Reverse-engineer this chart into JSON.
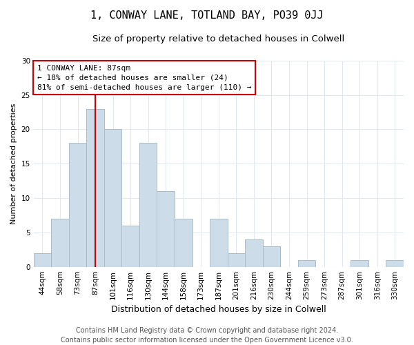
{
  "title": "1, CONWAY LANE, TOTLAND BAY, PO39 0JJ",
  "subtitle": "Size of property relative to detached houses in Colwell",
  "xlabel": "Distribution of detached houses by size in Colwell",
  "ylabel": "Number of detached properties",
  "footer_line1": "Contains HM Land Registry data © Crown copyright and database right 2024.",
  "footer_line2": "Contains public sector information licensed under the Open Government Licence v3.0.",
  "bar_labels": [
    "44sqm",
    "58sqm",
    "73sqm",
    "87sqm",
    "101sqm",
    "116sqm",
    "130sqm",
    "144sqm",
    "158sqm",
    "173sqm",
    "187sqm",
    "201sqm",
    "216sqm",
    "230sqm",
    "244sqm",
    "259sqm",
    "273sqm",
    "287sqm",
    "301sqm",
    "316sqm",
    "330sqm"
  ],
  "bar_values": [
    2,
    7,
    18,
    23,
    20,
    6,
    18,
    11,
    7,
    0,
    7,
    2,
    4,
    3,
    0,
    1,
    0,
    0,
    1,
    0,
    1
  ],
  "bar_color": "#ccdce8",
  "bar_edge_color": "#aabccc",
  "highlight_index": 3,
  "highlight_line_color": "#cc0000",
  "annotation_text_line1": "1 CONWAY LANE: 87sqm",
  "annotation_text_line2": "← 18% of detached houses are smaller (24)",
  "annotation_text_line3": "81% of semi-detached houses are larger (110) →",
  "annotation_box_color": "#ffffff",
  "annotation_box_edge": "#cc0000",
  "ylim": [
    0,
    30
  ],
  "yticks": [
    0,
    5,
    10,
    15,
    20,
    25,
    30
  ],
  "background_color": "#ffffff",
  "plot_background": "#ffffff",
  "grid_color": "#e0e8f0",
  "title_fontsize": 11,
  "subtitle_fontsize": 9.5,
  "xlabel_fontsize": 9,
  "ylabel_fontsize": 8,
  "tick_fontsize": 7.5,
  "annotation_fontsize": 8,
  "footer_fontsize": 7
}
